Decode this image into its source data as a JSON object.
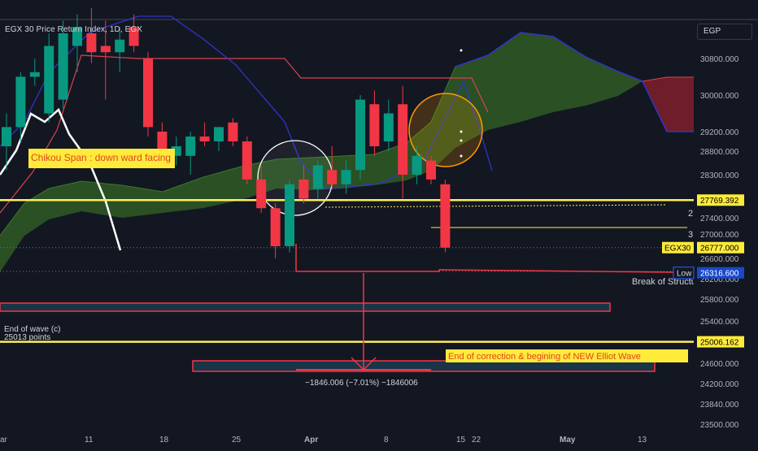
{
  "header": {
    "title": "EGX 30 Price Return Index, 1D, EGX",
    "currency": "EGP"
  },
  "chart_data": {
    "type": "candlestick",
    "ylim": [
      23200,
      31600
    ],
    "y_ticks": [
      "30800.000",
      "30000.000",
      "29200.000",
      "28800.000",
      "28300.000",
      "27400.000",
      "27000.000",
      "26600.000",
      "26200.000",
      "25800.000",
      "25400.000",
      "24600.000",
      "24200.000",
      "23840.000",
      "23500.000"
    ],
    "x_ticks": [
      "ar",
      "11",
      "18",
      "25",
      "Apr",
      "8",
      "15",
      "22",
      "May",
      "13"
    ],
    "candles": [
      {
        "o": 28900,
        "h": 29600,
        "l": 28400,
        "c": 29300
      },
      {
        "o": 29300,
        "h": 30500,
        "l": 29000,
        "c": 30400
      },
      {
        "o": 30400,
        "h": 30800,
        "l": 30200,
        "c": 30500
      },
      {
        "o": 29600,
        "h": 31200,
        "l": 29400,
        "c": 31000
      },
      {
        "o": 29900,
        "h": 31400,
        "l": 29700,
        "c": 31200
      },
      {
        "o": 31000,
        "h": 31500,
        "l": 30500,
        "c": 31300
      },
      {
        "o": 31200,
        "h": 31600,
        "l": 30700,
        "c": 30900
      },
      {
        "o": 31000,
        "h": 31400,
        "l": 29900,
        "c": 30900
      },
      {
        "o": 30900,
        "h": 31300,
        "l": 30500,
        "c": 31100
      },
      {
        "o": 31300,
        "h": 31500,
        "l": 30900,
        "c": 31000
      },
      {
        "o": 30800,
        "h": 30900,
        "l": 29100,
        "c": 29300
      },
      {
        "o": 29200,
        "h": 29400,
        "l": 28600,
        "c": 28700
      },
      {
        "o": 28700,
        "h": 29100,
        "l": 28500,
        "c": 28900
      },
      {
        "o": 28700,
        "h": 29200,
        "l": 28300,
        "c": 29100
      },
      {
        "o": 29100,
        "h": 29400,
        "l": 28900,
        "c": 29000
      },
      {
        "o": 29000,
        "h": 29300,
        "l": 28800,
        "c": 29300
      },
      {
        "o": 29400,
        "h": 29500,
        "l": 28900,
        "c": 29000
      },
      {
        "o": 29000,
        "h": 29100,
        "l": 28100,
        "c": 28200
      },
      {
        "o": 28200,
        "h": 28500,
        "l": 27500,
        "c": 27600
      },
      {
        "o": 27600,
        "h": 27700,
        "l": 26600,
        "c": 26800
      },
      {
        "o": 26800,
        "h": 28200,
        "l": 26700,
        "c": 28100
      },
      {
        "o": 28200,
        "h": 28500,
        "l": 27700,
        "c": 27800
      },
      {
        "o": 28000,
        "h": 28600,
        "l": 27800,
        "c": 28500
      },
      {
        "o": 28400,
        "h": 28900,
        "l": 28000,
        "c": 28100
      },
      {
        "o": 28100,
        "h": 28600,
        "l": 27900,
        "c": 28400
      },
      {
        "o": 28400,
        "h": 30000,
        "l": 28200,
        "c": 29900
      },
      {
        "o": 29800,
        "h": 30100,
        "l": 28700,
        "c": 28900
      },
      {
        "o": 29000,
        "h": 29900,
        "l": 28800,
        "c": 29600
      },
      {
        "o": 29800,
        "h": 30200,
        "l": 27800,
        "c": 28300
      },
      {
        "o": 28300,
        "h": 28900,
        "l": 28100,
        "c": 28700
      },
      {
        "o": 28600,
        "h": 28700,
        "l": 28100,
        "c": 28200
      },
      {
        "o": 28100,
        "h": 28200,
        "l": 26700,
        "c": 26777
      }
    ],
    "level_labels": [
      {
        "value": 27769.392,
        "text": "27769.392",
        "kind": "yellow"
      },
      {
        "value": 26777.0,
        "text": "26777.000",
        "tag": "EGX30",
        "kind": "yellow"
      },
      {
        "value": 26316.6,
        "text": "26316.600",
        "tag": "Low",
        "kind": "blue"
      },
      {
        "value": 25006.162,
        "text": "25006.162",
        "kind": "yellow"
      }
    ],
    "annotations": {
      "chikou": "Chikou Span : down ward facing",
      "wave_end_1": "End of wave (c)",
      "wave_end_2": "25013 points",
      "correction": "End of correction & begining of NEW Elliot Wave",
      "measure": "−1846.006 (−7.01%) −1846006",
      "bos": "Break of Structure",
      "num2": "2",
      "num3": "3"
    },
    "colors": {
      "up": "#089981",
      "down": "#f23645",
      "kumo_bull": "#2f5a24",
      "kumo_bear": "#7a1e2a",
      "highlight": "#ffeb3b",
      "label_text": "#e0431f",
      "kijun": "#d84351",
      "tenkan": "#3034c9",
      "axis_text": "#b2b5be",
      "bg": "#131722"
    }
  }
}
